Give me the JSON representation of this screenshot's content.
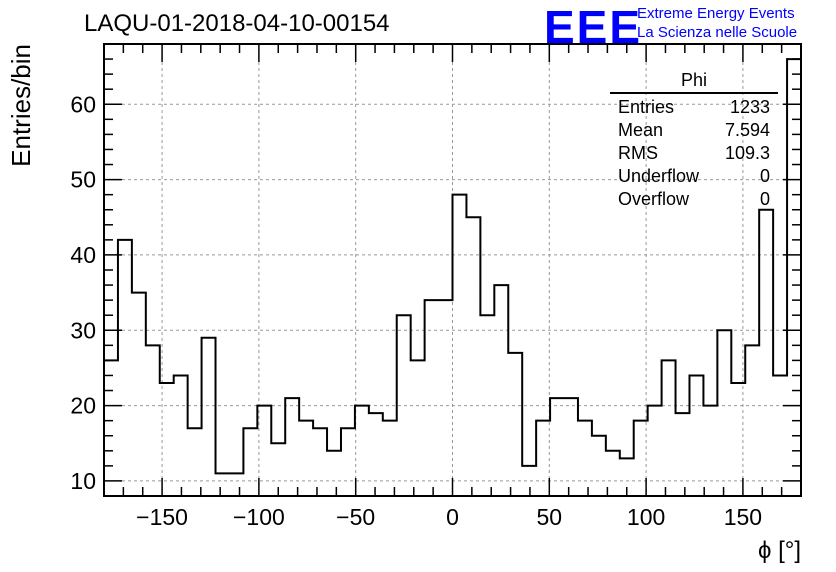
{
  "header": {
    "title": "LAQU-01-2018-04-10-00154",
    "logo_mark": "EEE",
    "logo_line1": "Extreme Energy Events",
    "logo_line2": "La Scienza nelle Scuole"
  },
  "stats_box": {
    "name": "Phi",
    "rows": [
      {
        "label": "Entries",
        "value": "1233"
      },
      {
        "label": "Mean",
        "value": "7.594"
      },
      {
        "label": "RMS",
        "value": "109.3"
      },
      {
        "label": "Underflow",
        "value": "0"
      },
      {
        "label": "Overflow",
        "value": "0"
      }
    ]
  },
  "colors": {
    "logo": "#0000ff",
    "line": "#000000",
    "grid": "#999999"
  },
  "chart_data": {
    "type": "bar",
    "title": "LAQU-01-2018-04-10-00154",
    "xlabel": "ϕ [°]",
    "ylabel": "Entries/bin",
    "xlim": [
      -180,
      180
    ],
    "ylim": [
      8,
      68
    ],
    "bin_width": 7.2,
    "grid": true,
    "x_ticks": [
      -150,
      -100,
      -50,
      0,
      50,
      100,
      150
    ],
    "x_tick_labels": [
      "−150",
      "−100",
      "−50",
      "0",
      "50",
      "100",
      "150"
    ],
    "y_ticks": [
      10,
      20,
      30,
      40,
      50,
      60
    ],
    "y_tick_labels": [
      "10",
      "20",
      "30",
      "40",
      "50",
      "60"
    ],
    "values": [
      26,
      42,
      35,
      28,
      23,
      24,
      17,
      29,
      11,
      11,
      17,
      20,
      15,
      21,
      18,
      17,
      14,
      17,
      20,
      19,
      18,
      32,
      26,
      34,
      34,
      48,
      45,
      32,
      36,
      27,
      12,
      18,
      21,
      21,
      18,
      16,
      14,
      13,
      18,
      20,
      26,
      19,
      24,
      20,
      30,
      23,
      28,
      46,
      24,
      66
    ]
  }
}
